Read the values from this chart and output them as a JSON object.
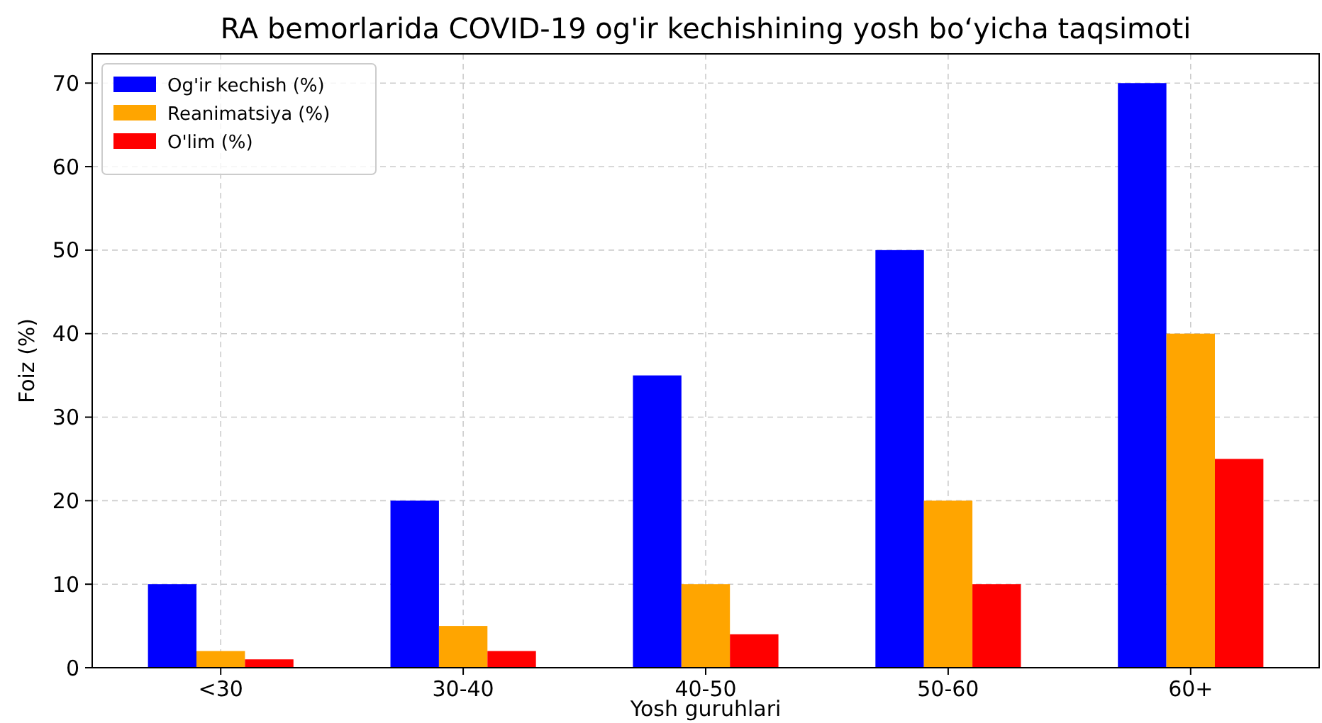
{
  "chart_data": {
    "type": "bar",
    "title": "RA bemorlarida COVID-19 og'ir kechishining yosh bo‘yicha taqsimoti",
    "xlabel": "Yosh guruhlari",
    "ylabel": "Foiz (%)",
    "categories": [
      "<30",
      "30-40",
      "40-50",
      "50-60",
      "60+"
    ],
    "series": [
      {
        "name": "Og'ir kechish (%)",
        "color": "#0000ff",
        "values": [
          10,
          20,
          35,
          50,
          70
        ]
      },
      {
        "name": "Reanimatsiya (%)",
        "color": "#ffa500",
        "values": [
          2,
          5,
          10,
          20,
          40
        ]
      },
      {
        "name": "O'lim (%)",
        "color": "#ff0000",
        "values": [
          1,
          2,
          4,
          10,
          25
        ]
      }
    ],
    "ylim": [
      0,
      73.5
    ],
    "yticks": [
      0,
      10,
      20,
      30,
      40,
      50,
      60,
      70
    ],
    "grid": true,
    "legend": "top left"
  }
}
